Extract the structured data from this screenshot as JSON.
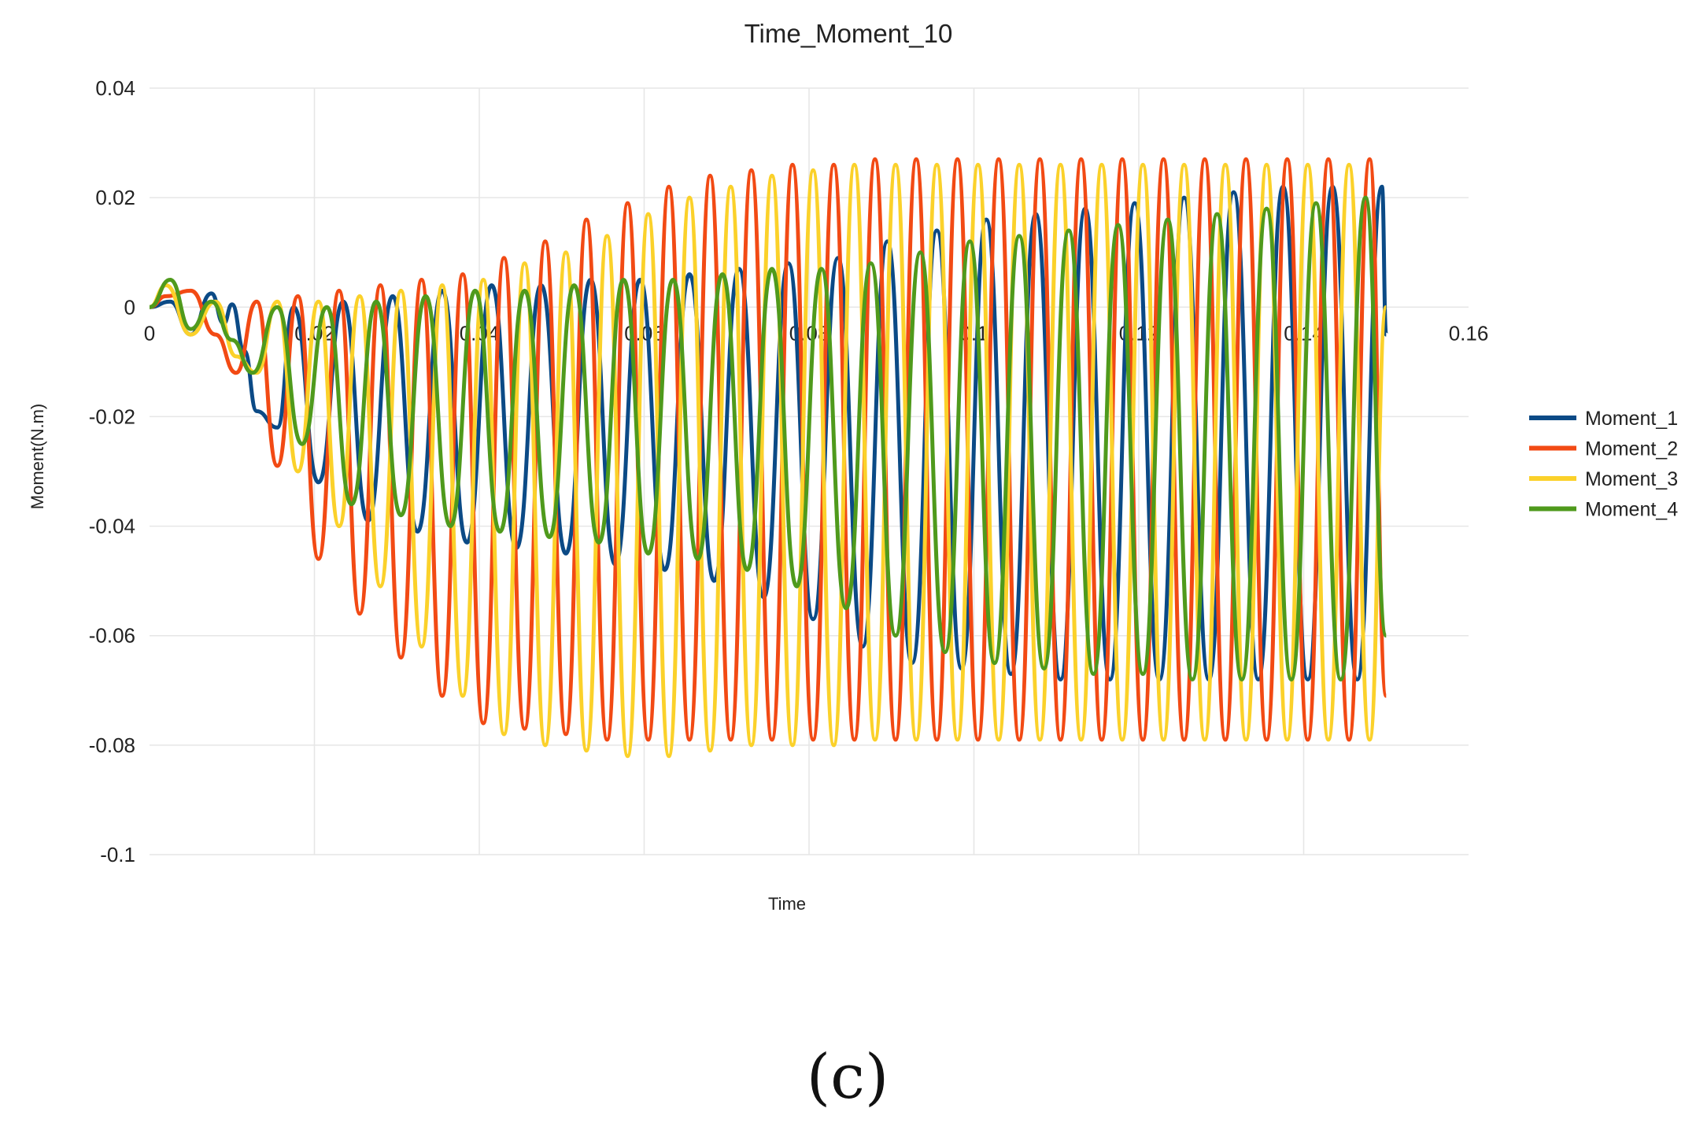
{
  "chart_data": {
    "type": "line",
    "title": "Time_Moment_10",
    "xlabel": "Time",
    "ylabel": "Moment(N.m)",
    "xlim": [
      0,
      0.16
    ],
    "ylim": [
      -0.1,
      0.04
    ],
    "x_ticks": [
      "0",
      "0.02",
      "0.04",
      "0.06",
      "0.08",
      "0.1",
      "0.12",
      "0.14",
      "0.16"
    ],
    "y_ticks": [
      "0.04",
      "0.02",
      "0",
      "-0.02",
      "-0.04",
      "-0.06",
      "-0.08",
      "-0.1"
    ],
    "grid": true,
    "legend": "right",
    "colors": {
      "Moment_1": "#0b4a86",
      "Moment_2": "#f24a14",
      "Moment_3": "#fbd12a",
      "Moment_4": "#4f9a1c"
    },
    "series": [
      {
        "name": "Moment_1",
        "x": [
          0,
          0.0025,
          0.005,
          0.0075,
          0.009,
          0.01,
          0.0115,
          0.013,
          0.0155,
          0.0175,
          0.0205,
          0.0235,
          0.0265,
          0.0295,
          0.0325,
          0.0355,
          0.0385,
          0.0415,
          0.0445,
          0.0475,
          0.0505,
          0.0535,
          0.0565,
          0.0595,
          0.0625,
          0.0655,
          0.0685,
          0.0715,
          0.0745,
          0.0775,
          0.0805,
          0.0835,
          0.0865,
          0.0895,
          0.0925,
          0.0955,
          0.0985,
          0.1015,
          0.1045,
          0.1075,
          0.1105,
          0.1135,
          0.1165,
          0.1195,
          0.1225,
          0.1255,
          0.1285,
          0.1315,
          0.1345,
          0.1375,
          0.1405,
          0.1435,
          0.1465,
          0.1495,
          0.15
        ],
        "y": [
          0,
          0.001,
          -0.005,
          0.0025,
          -0.003,
          0.0005,
          -0.008,
          -0.019,
          -0.022,
          0.0,
          -0.032,
          0.001,
          -0.039,
          0.002,
          -0.041,
          0.003,
          -0.043,
          0.004,
          -0.044,
          0.004,
          -0.045,
          0.005,
          -0.047,
          0.005,
          -0.048,
          0.006,
          -0.05,
          0.007,
          -0.053,
          0.008,
          -0.057,
          0.009,
          -0.062,
          0.012,
          -0.065,
          0.014,
          -0.066,
          0.016,
          -0.067,
          0.017,
          -0.068,
          0.018,
          -0.068,
          0.019,
          -0.068,
          0.02,
          -0.068,
          0.021,
          -0.068,
          0.022,
          -0.068,
          0.022,
          -0.068,
          0.022,
          -0.005
        ]
      },
      {
        "name": "Moment_2",
        "x": [
          0,
          0.002,
          0.005,
          0.008,
          0.0105,
          0.013,
          0.0155,
          0.018,
          0.0205,
          0.023,
          0.0255,
          0.028,
          0.0305,
          0.033,
          0.0355,
          0.038,
          0.0405,
          0.043,
          0.0455,
          0.048,
          0.0505,
          0.053,
          0.0555,
          0.058,
          0.0605,
          0.063,
          0.0655,
          0.068,
          0.0705,
          0.073,
          0.0755,
          0.078,
          0.0805,
          0.083,
          0.0855,
          0.088,
          0.0905,
          0.093,
          0.0955,
          0.098,
          0.1005,
          0.103,
          0.1055,
          0.108,
          0.1105,
          0.113,
          0.1155,
          0.118,
          0.1205,
          0.123,
          0.1255,
          0.128,
          0.1305,
          0.133,
          0.1355,
          0.138,
          0.1405,
          0.143,
          0.1455,
          0.148,
          0.15
        ],
        "y": [
          0,
          0.002,
          0.003,
          -0.005,
          -0.012,
          0.001,
          -0.029,
          0.002,
          -0.046,
          0.003,
          -0.056,
          0.004,
          -0.064,
          0.005,
          -0.071,
          0.006,
          -0.076,
          0.009,
          -0.077,
          0.012,
          -0.078,
          0.016,
          -0.079,
          0.019,
          -0.079,
          0.022,
          -0.079,
          0.024,
          -0.079,
          0.025,
          -0.079,
          0.026,
          -0.079,
          0.026,
          -0.079,
          0.027,
          -0.079,
          0.027,
          -0.079,
          0.027,
          -0.079,
          0.027,
          -0.079,
          0.027,
          -0.079,
          0.027,
          -0.079,
          0.027,
          -0.079,
          0.027,
          -0.079,
          0.027,
          -0.079,
          0.027,
          -0.079,
          0.027,
          -0.079,
          0.027,
          -0.079,
          0.027,
          -0.071
        ]
      },
      {
        "name": "Moment_3",
        "x": [
          0,
          0.002,
          0.005,
          0.008,
          0.0105,
          0.013,
          0.0155,
          0.018,
          0.0205,
          0.023,
          0.0255,
          0.028,
          0.0305,
          0.033,
          0.0355,
          0.038,
          0.0405,
          0.043,
          0.0455,
          0.048,
          0.0505,
          0.053,
          0.0555,
          0.058,
          0.0605,
          0.063,
          0.0655,
          0.068,
          0.0705,
          0.073,
          0.0755,
          0.078,
          0.0805,
          0.083,
          0.0855,
          0.088,
          0.0905,
          0.093,
          0.0955,
          0.098,
          0.1005,
          0.103,
          0.1055,
          0.108,
          0.1105,
          0.113,
          0.1155,
          0.118,
          0.1205,
          0.123,
          0.1255,
          0.128,
          0.1305,
          0.133,
          0.1355,
          0.138,
          0.1405,
          0.143,
          0.1455,
          0.148,
          0.15
        ],
        "y": [
          0,
          0.004,
          -0.005,
          0.001,
          -0.009,
          -0.012,
          0.001,
          -0.03,
          0.001,
          -0.04,
          0.002,
          -0.051,
          0.003,
          -0.062,
          0.004,
          -0.071,
          0.005,
          -0.078,
          0.008,
          -0.08,
          0.01,
          -0.081,
          0.013,
          -0.082,
          0.017,
          -0.082,
          0.02,
          -0.081,
          0.022,
          -0.08,
          0.024,
          -0.08,
          0.025,
          -0.08,
          0.026,
          -0.079,
          0.026,
          -0.079,
          0.026,
          -0.079,
          0.026,
          -0.079,
          0.026,
          -0.079,
          0.026,
          -0.079,
          0.026,
          -0.079,
          0.026,
          -0.079,
          0.026,
          -0.079,
          0.026,
          -0.079,
          0.026,
          -0.079,
          0.026,
          -0.079,
          0.026,
          -0.079,
          0
        ]
      },
      {
        "name": "Moment_4",
        "x": [
          0,
          0.0025,
          0.005,
          0.0075,
          0.01,
          0.0125,
          0.0155,
          0.0185,
          0.0215,
          0.0245,
          0.0275,
          0.0305,
          0.0335,
          0.0365,
          0.0395,
          0.0425,
          0.0455,
          0.0485,
          0.0515,
          0.0545,
          0.0575,
          0.0605,
          0.0635,
          0.0665,
          0.0695,
          0.0725,
          0.0755,
          0.0785,
          0.0815,
          0.0845,
          0.0875,
          0.0905,
          0.0935,
          0.0965,
          0.0995,
          0.1025,
          0.1055,
          0.1085,
          0.1115,
          0.1145,
          0.1175,
          0.1205,
          0.1235,
          0.1265,
          0.1295,
          0.1325,
          0.1355,
          0.1385,
          0.1415,
          0.1445,
          0.1475,
          0.15
        ],
        "y": [
          0,
          0.005,
          -0.004,
          0.001,
          -0.006,
          -0.012,
          0.0,
          -0.025,
          0.0,
          -0.036,
          0.001,
          -0.038,
          0.002,
          -0.04,
          0.003,
          -0.041,
          0.003,
          -0.042,
          0.004,
          -0.043,
          0.005,
          -0.045,
          0.005,
          -0.046,
          0.006,
          -0.048,
          0.007,
          -0.051,
          0.007,
          -0.055,
          0.008,
          -0.06,
          0.01,
          -0.063,
          0.012,
          -0.065,
          0.013,
          -0.066,
          0.014,
          -0.067,
          0.015,
          -0.067,
          0.016,
          -0.068,
          0.017,
          -0.068,
          0.018,
          -0.068,
          0.019,
          -0.068,
          0.02,
          -0.06
        ]
      }
    ]
  },
  "caption": "(c)"
}
